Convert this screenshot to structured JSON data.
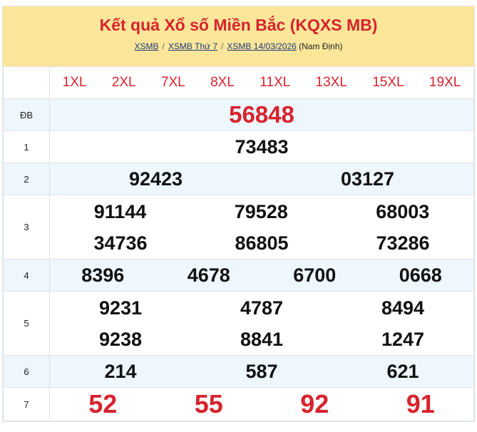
{
  "header": {
    "title": "Kết quả Xổ số Miền Bắc (KQXS MB)",
    "breadcrumb": [
      "XSMB",
      "XSMB Thứ 7",
      "XSMB 14/03/2026"
    ],
    "province": "(Nam Định)"
  },
  "codes": [
    "1XL",
    "2XL",
    "7XL",
    "8XL",
    "11XL",
    "13XL",
    "15XL",
    "19XL"
  ],
  "prizes": {
    "db": {
      "label": "ĐB",
      "numbers": [
        "56848"
      ]
    },
    "p1": {
      "label": "1",
      "numbers": [
        "73483"
      ]
    },
    "p2": {
      "label": "2",
      "numbers": [
        "92423",
        "03127"
      ]
    },
    "p3": {
      "label": "3",
      "numbers": [
        "91144",
        "79528",
        "68003",
        "34736",
        "86805",
        "73286"
      ]
    },
    "p4": {
      "label": "4",
      "numbers": [
        "8396",
        "4678",
        "6700",
        "0668"
      ]
    },
    "p5": {
      "label": "5",
      "numbers": [
        "9231",
        "4787",
        "8494",
        "9238",
        "8841",
        "1247"
      ]
    },
    "p6": {
      "label": "6",
      "numbers": [
        "214",
        "587",
        "621"
      ]
    },
    "p7": {
      "label": "7",
      "numbers": [
        "52",
        "55",
        "92",
        "91"
      ]
    }
  },
  "colors": {
    "accent": "#d7232d",
    "header_bg": "#fbe69a",
    "alt_row": "#eef6fe"
  }
}
